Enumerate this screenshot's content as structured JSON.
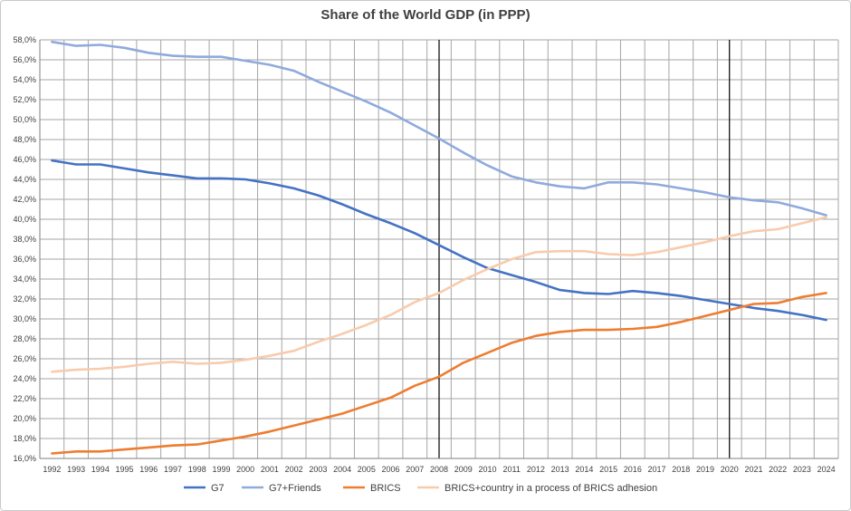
{
  "chart_data": {
    "type": "line",
    "title": "Share of the World GDP (in PPP)",
    "xlabel": "",
    "ylabel": "",
    "ylim": [
      0.16,
      0.58
    ],
    "y_tick_step": 0.02,
    "y_format": "percent_one_decimal_comma",
    "grid": "on",
    "legend_position": "bottom",
    "categories": [
      "1992",
      "1993",
      "1994",
      "1995",
      "1996",
      "1997",
      "1998",
      "1999",
      "2000",
      "2001",
      "2002",
      "2003",
      "2004",
      "2005",
      "2006",
      "2007",
      "2008",
      "2009",
      "2010",
      "2011",
      "2012",
      "2013",
      "2014",
      "2015",
      "2016",
      "2017",
      "2018",
      "2019",
      "2020",
      "2021",
      "2022",
      "2023",
      "2024"
    ],
    "vertical_markers": [
      "2008",
      "2020"
    ],
    "series": [
      {
        "name": "G7",
        "color": "#4472C4",
        "values": [
          0.459,
          0.455,
          0.455,
          0.451,
          0.447,
          0.444,
          0.441,
          0.441,
          0.44,
          0.436,
          0.431,
          0.424,
          0.415,
          0.405,
          0.396,
          0.386,
          0.374,
          0.362,
          0.351,
          0.344,
          0.337,
          0.329,
          0.326,
          0.325,
          0.328,
          0.326,
          0.323,
          0.319,
          0.315,
          0.311,
          0.308,
          0.304,
          0.299
        ]
      },
      {
        "name": "G7+Friends",
        "color": "#8FAADC",
        "values": [
          0.578,
          0.574,
          0.575,
          0.572,
          0.567,
          0.564,
          0.563,
          0.563,
          0.559,
          0.555,
          0.549,
          0.538,
          0.528,
          0.518,
          0.507,
          0.494,
          0.481,
          0.467,
          0.454,
          0.443,
          0.437,
          0.433,
          0.431,
          0.437,
          0.437,
          0.435,
          0.431,
          0.427,
          0.422,
          0.419,
          0.417,
          0.411,
          0.404
        ]
      },
      {
        "name": "BRICS",
        "color": "#ED7D31",
        "values": [
          0.165,
          0.167,
          0.167,
          0.169,
          0.171,
          0.173,
          0.174,
          0.178,
          0.182,
          0.187,
          0.193,
          0.199,
          0.205,
          0.213,
          0.221,
          0.233,
          0.242,
          0.256,
          0.266,
          0.276,
          0.283,
          0.287,
          0.289,
          0.289,
          0.29,
          0.292,
          0.297,
          0.303,
          0.309,
          0.315,
          0.316,
          0.322,
          0.326
        ]
      },
      {
        "name": "BRICS+country in a process of BRICS adhesion",
        "color": "#F8CBAD",
        "values": [
          0.247,
          0.249,
          0.25,
          0.252,
          0.255,
          0.257,
          0.255,
          0.256,
          0.259,
          0.263,
          0.268,
          0.277,
          0.285,
          0.294,
          0.304,
          0.317,
          0.326,
          0.339,
          0.35,
          0.36,
          0.367,
          0.368,
          0.368,
          0.365,
          0.364,
          0.367,
          0.372,
          0.377,
          0.383,
          0.388,
          0.39,
          0.396,
          0.402
        ]
      }
    ]
  }
}
